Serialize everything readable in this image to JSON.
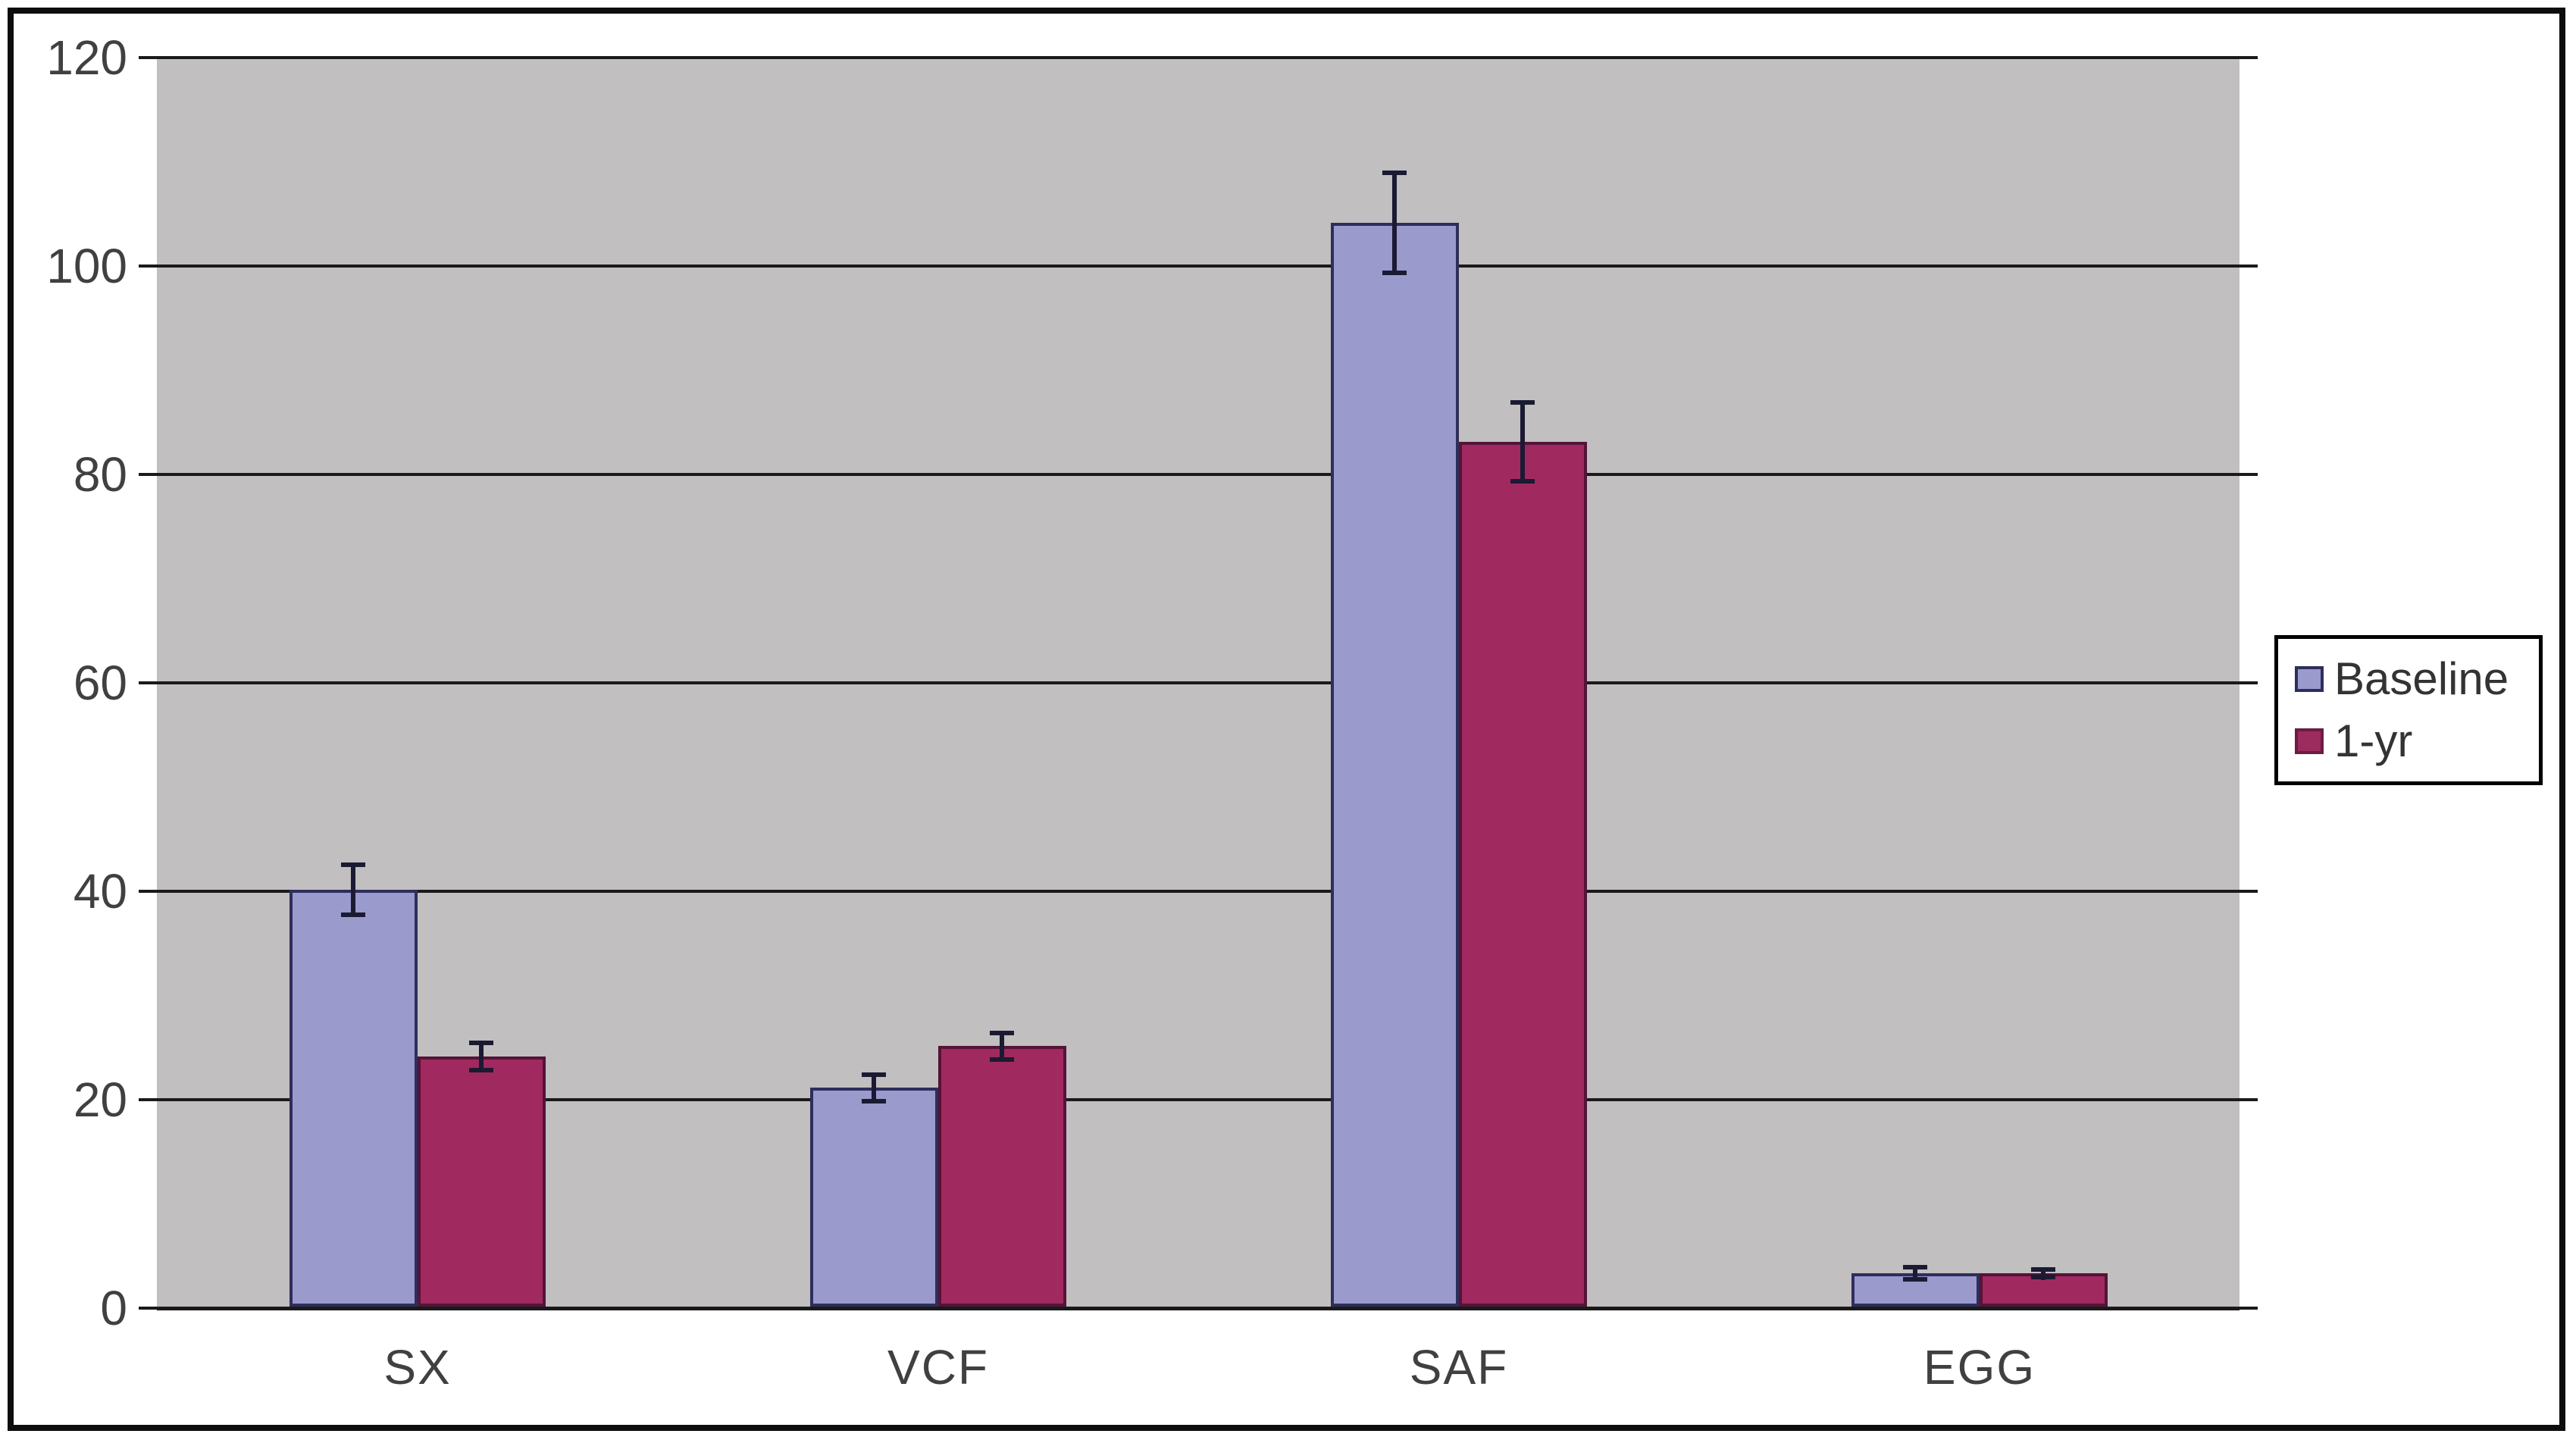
{
  "chart_data": {
    "type": "bar",
    "categories": [
      "SX",
      "VCF",
      "SAF",
      "EGG"
    ],
    "series": [
      {
        "name": "Baseline",
        "color": "#9A9ACD",
        "border_color": "#2E2E5C",
        "values": [
          40,
          21,
          104,
          3.2
        ],
        "errors": [
          2.6,
          1.5,
          5,
          0.8
        ]
      },
      {
        "name": "1-yr",
        "color": "#A02A5F",
        "border_color": "#541337",
        "values": [
          24,
          25,
          83,
          3.2
        ],
        "errors": [
          1.5,
          1.5,
          4,
          0.6
        ]
      }
    ],
    "title": "",
    "xlabel": "",
    "ylabel": "",
    "ylim": [
      0,
      120
    ],
    "yticks": [
      0,
      20,
      40,
      60,
      80,
      100,
      120
    ],
    "grid": true,
    "error_bars": true,
    "legend_position": "right"
  },
  "colors": {
    "plot_background": "#C1BFBF",
    "page_background": "#FFFFFF",
    "gridline": "#1A1A1A",
    "axis_text": "#404040",
    "error_bar": "#1A1A33",
    "figure_border": "#0D0D0D",
    "legend_border": "#000000",
    "legend_background": "#FFFFFF"
  }
}
